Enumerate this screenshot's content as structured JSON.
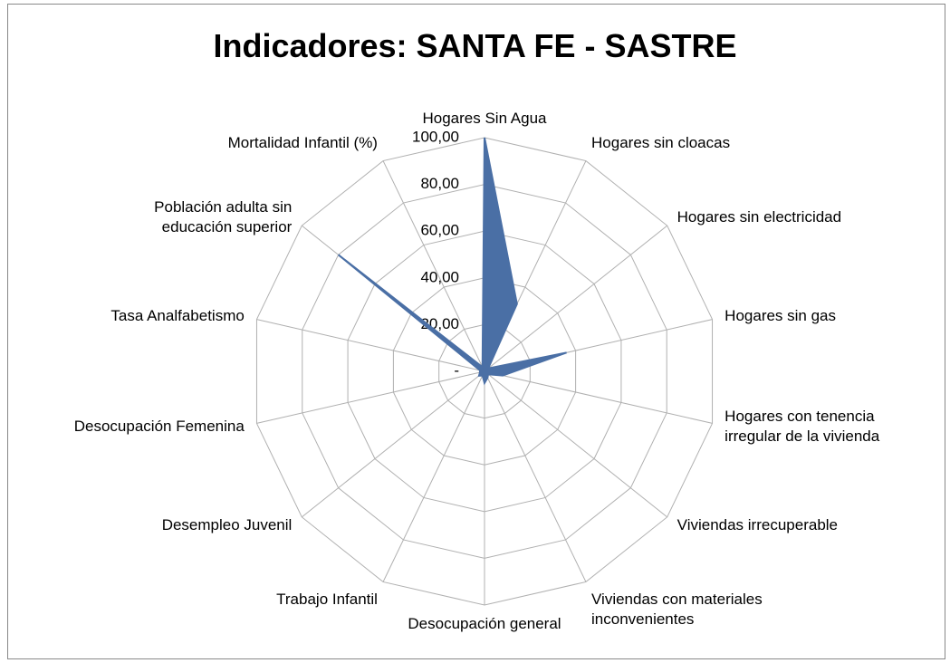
{
  "chart_data": {
    "type": "radar",
    "title": "Indicadores: SANTA FE - SASTRE",
    "categories": [
      "Hogares Sin Agua",
      "Hogares sin cloacas",
      "Hogares sin electricidad",
      "Hogares sin gas",
      "Hogares con tenencia irregular de la vivienda",
      "Viviendas irrecuperable",
      "Viviendas con materiales inconvenientes",
      "Desocupación general",
      "Trabajo Infantil",
      "Desempleo Juvenil",
      "Desocupación Femenina",
      "Tasa Analfabetismo",
      "Población adulta  sin educación superior",
      "Mortalidad Infantil (%)"
    ],
    "values": [
      100,
      32,
      2,
      36,
      8,
      2,
      3,
      5,
      2,
      3,
      2,
      2,
      80,
      2
    ],
    "color": "#4a6fa5",
    "ylim": [
      0,
      100
    ],
    "yticks": [
      {
        "value": 0,
        "label": "-"
      },
      {
        "value": 20,
        "label": "20,00"
      },
      {
        "value": 40,
        "label": "40,00"
      },
      {
        "value": 60,
        "label": "60,00"
      },
      {
        "value": 80,
        "label": "80,00"
      },
      {
        "value": 100,
        "label": "100,00"
      }
    ],
    "grid": true
  }
}
